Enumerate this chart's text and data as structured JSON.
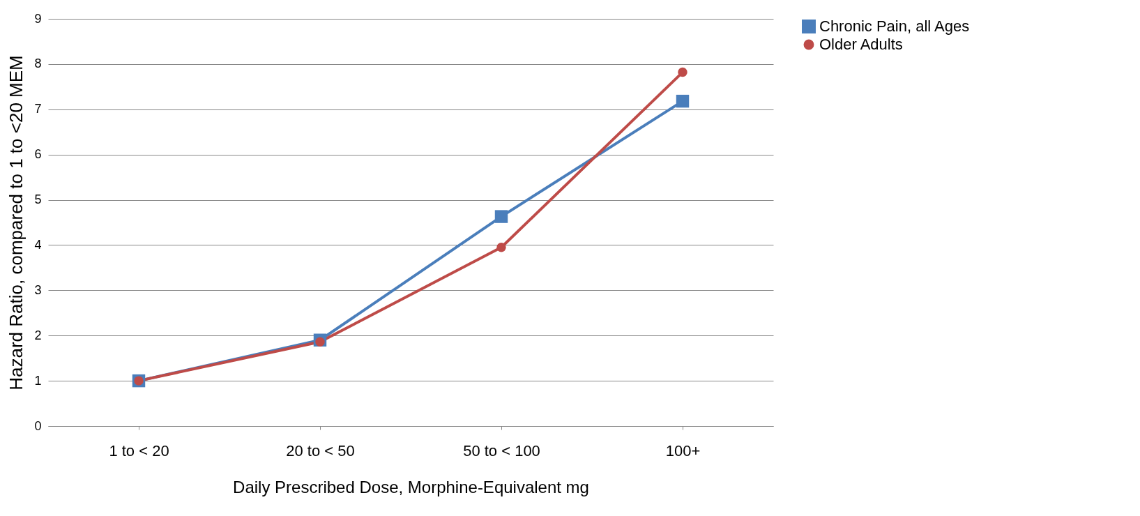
{
  "chart_data": {
    "type": "line",
    "xlabel": "Daily Prescribed Dose, Morphine-Equivalent mg",
    "ylabel": "Hazard Ratio, compared to 1 to <20 MEM",
    "categories": [
      "1 to < 20",
      "20 to < 50",
      "50 to < 100",
      "100+"
    ],
    "series": [
      {
        "name": "Chronic Pain, all Ages",
        "color": "#4a7ebb",
        "marker": "square",
        "values": [
          1,
          1.9,
          4.63,
          7.18
        ]
      },
      {
        "name": "Older Adults",
        "color": "#be4b48",
        "marker": "circle",
        "values": [
          1,
          1.86,
          3.95,
          7.82
        ]
      }
    ],
    "ylim": [
      0,
      9
    ],
    "yticks": [
      0,
      1,
      2,
      3,
      4,
      5,
      6,
      7,
      8,
      9
    ],
    "grid": "y",
    "legend": "right",
    "line_style": "solid"
  }
}
